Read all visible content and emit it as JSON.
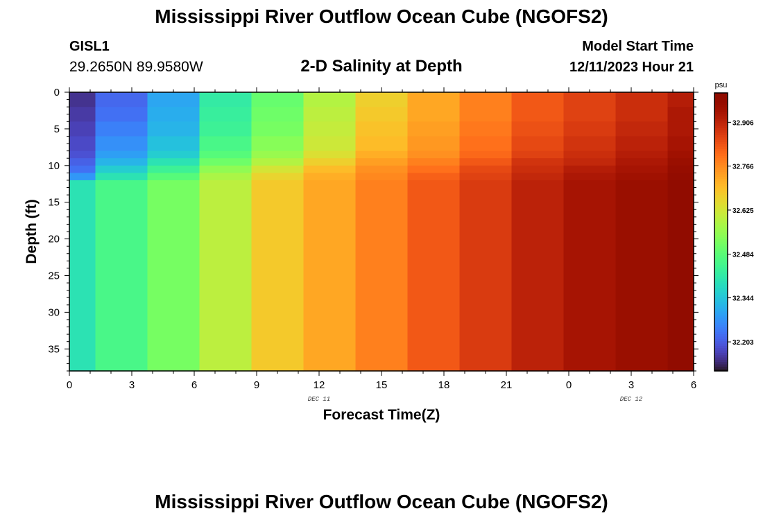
{
  "header": {
    "title": "Mississippi River Outflow Ocean Cube (NGOFS2)",
    "station_id": "GISL1",
    "station_coords": "29.2650N  89.9580W",
    "plot_title": "2-D Salinity at Depth",
    "model_start_label": "Model Start Time",
    "model_start_time": "12/11/2023 Hour 21"
  },
  "footer": {
    "title": "Mississippi River Outflow Ocean Cube (NGOFS2)"
  },
  "chart_data": {
    "type": "heatmap",
    "title": "2-D Salinity at Depth",
    "xlabel": "Forecast Time(Z)",
    "ylabel": "Depth (ft)",
    "x_ticks": [
      "0",
      "3",
      "6",
      "9",
      "12",
      "15",
      "18",
      "21",
      "0",
      "3",
      "6"
    ],
    "x_hours": [
      0,
      3,
      6,
      9,
      12,
      15,
      18,
      21,
      24,
      27,
      30
    ],
    "date_labels": [
      {
        "text": "DEC 11",
        "hour": 12
      },
      {
        "text": "DEC 12",
        "hour": 27
      }
    ],
    "xlim": [
      0,
      30
    ],
    "y_ticks": [
      0,
      5,
      10,
      15,
      20,
      25,
      30,
      35
    ],
    "ylim": [
      0,
      38
    ],
    "y_inverted": true,
    "colorbar": {
      "unit": "psu",
      "ticks": [
        32.203,
        32.344,
        32.484,
        32.625,
        32.766,
        32.906
      ],
      "range": [
        32.11,
        33.0
      ],
      "colormap": "turbo"
    },
    "column_edges_hours": [
      0,
      1.25,
      3.75,
      6.25,
      8.75,
      11.25,
      13.75,
      16.25,
      18.75,
      21.25,
      23.75,
      26.25,
      28.75,
      30
    ],
    "layer_edges_depth": [
      0,
      2,
      4,
      6,
      8,
      9,
      10,
      11,
      12,
      38
    ],
    "salinity_psu": [
      [
        32.15,
        32.16,
        32.17,
        32.18,
        32.19,
        32.21,
        32.23,
        32.28,
        32.4
      ],
      [
        32.22,
        32.23,
        32.25,
        32.27,
        32.29,
        32.32,
        32.36,
        32.4,
        32.46
      ],
      [
        32.3,
        32.31,
        32.32,
        32.34,
        32.36,
        32.4,
        32.44,
        32.48,
        32.52
      ],
      [
        32.42,
        32.43,
        32.44,
        32.46,
        32.48,
        32.51,
        32.55,
        32.58,
        32.6
      ],
      [
        32.5,
        32.51,
        32.52,
        32.54,
        32.56,
        32.59,
        32.63,
        32.66,
        32.68
      ],
      [
        32.59,
        32.6,
        32.61,
        32.62,
        32.64,
        32.67,
        32.7,
        32.72,
        32.73
      ],
      [
        32.67,
        32.68,
        32.69,
        32.7,
        32.72,
        32.74,
        32.76,
        32.77,
        32.78
      ],
      [
        32.73,
        32.73,
        32.74,
        32.75,
        32.76,
        32.78,
        32.8,
        32.82,
        32.83
      ],
      [
        32.78,
        32.78,
        32.79,
        32.8,
        32.81,
        32.83,
        32.85,
        32.86,
        32.87
      ],
      [
        32.83,
        32.83,
        32.84,
        32.85,
        32.86,
        32.88,
        32.89,
        32.9,
        32.91
      ],
      [
        32.86,
        32.86,
        32.87,
        32.88,
        32.89,
        32.9,
        32.92,
        32.93,
        32.94
      ],
      [
        32.89,
        32.89,
        32.9,
        32.91,
        32.92,
        32.93,
        32.94,
        32.95,
        32.96
      ],
      [
        32.92,
        32.93,
        32.93,
        32.94,
        32.95,
        32.96,
        32.97,
        32.98,
        32.99
      ]
    ]
  }
}
